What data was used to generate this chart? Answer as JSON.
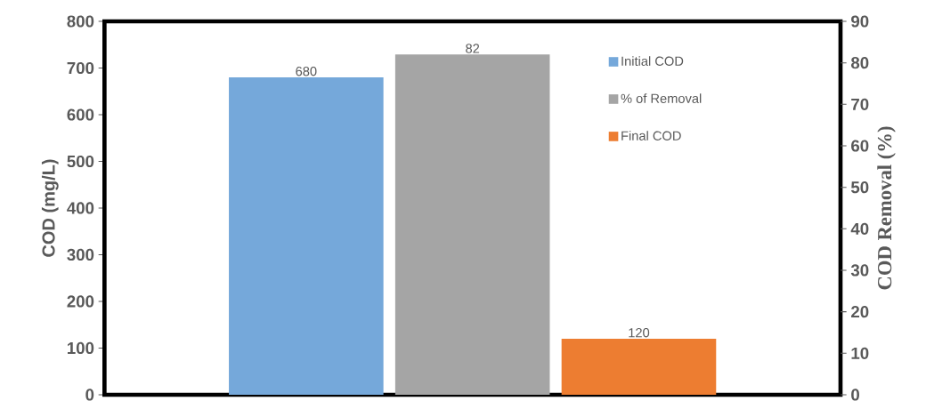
{
  "chart_data": {
    "type": "bar",
    "ylabel": "COD (mg/L)",
    "y2label": "COD Removal (%)",
    "categories": [
      null
    ],
    "series": [
      {
        "name": "Initial COD",
        "color": "#75a8da",
        "values": [
          680
        ]
      },
      {
        "name": "% of Removal",
        "color": "#a5a5a5",
        "values": [
          82
        ],
        "axis": "y2"
      },
      {
        "name": "Final COD",
        "color": "#ed7d31",
        "values": [
          120
        ]
      }
    ],
    "ylim": [
      0,
      800
    ],
    "yticks": [
      0,
      100,
      200,
      300,
      400,
      500,
      600,
      700,
      800
    ],
    "y2lim": [
      0,
      90
    ],
    "y2ticks": [
      0,
      10,
      20,
      30,
      40,
      50,
      60,
      70,
      80,
      90
    ],
    "data_labels": true,
    "legend": "top right"
  }
}
